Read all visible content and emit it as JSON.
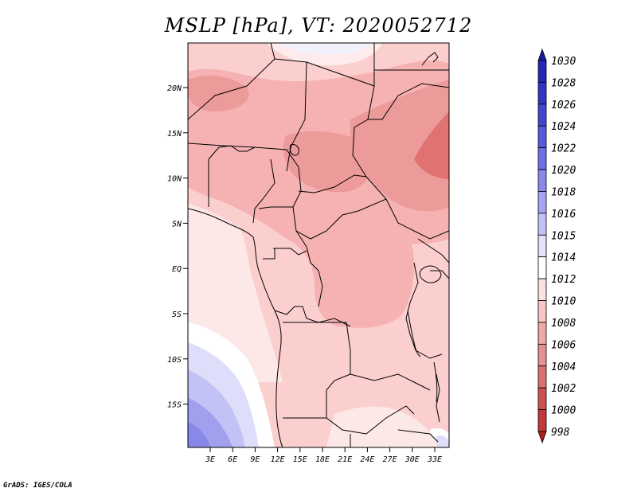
{
  "title": "MSLP [hPa], VT: 2020052712",
  "footer": "GrADS: IGES/COLA",
  "lat_labels": [
    "20N",
    "15N",
    "10N",
    "5N",
    "EQ",
    "5S",
    "10S",
    "15S"
  ],
  "lon_labels": [
    "3E",
    "6E",
    "9E",
    "12E",
    "15E",
    "18E",
    "21E",
    "24E",
    "27E",
    "30E",
    "33E"
  ],
  "colorbar": {
    "levels": [
      "1030",
      "1028",
      "1026",
      "1024",
      "1022",
      "1020",
      "1018",
      "1016",
      "1015",
      "1014",
      "1012",
      "1010",
      "1008",
      "1006",
      "1004",
      "1002",
      "1000",
      "998"
    ],
    "colors": [
      "#1a1aa0",
      "#2626b4",
      "#3434c4",
      "#4444d0",
      "#5858dc",
      "#6e6ee6",
      "#8888ee",
      "#a4a4f4",
      "#c2c2f8",
      "#e2e2fc",
      "#ffffff",
      "#fde0e0",
      "#f8c4c4",
      "#f0a8a8",
      "#e69090",
      "#dc7070",
      "#d05050",
      "#c43838",
      "#b02020"
    ]
  },
  "map_colors": {
    "p1014": "#fde8e8",
    "p1012": "#fccfcf",
    "p1010": "#f6b2b2",
    "p1008": "#ec9a9a",
    "p1006": "#e07272",
    "blue_light": "#dedefa",
    "blue_mid": "#c2c2f6",
    "blue_dark": "#a0a0ee",
    "blue_darker": "#8888e8",
    "white": "#ffffff"
  }
}
